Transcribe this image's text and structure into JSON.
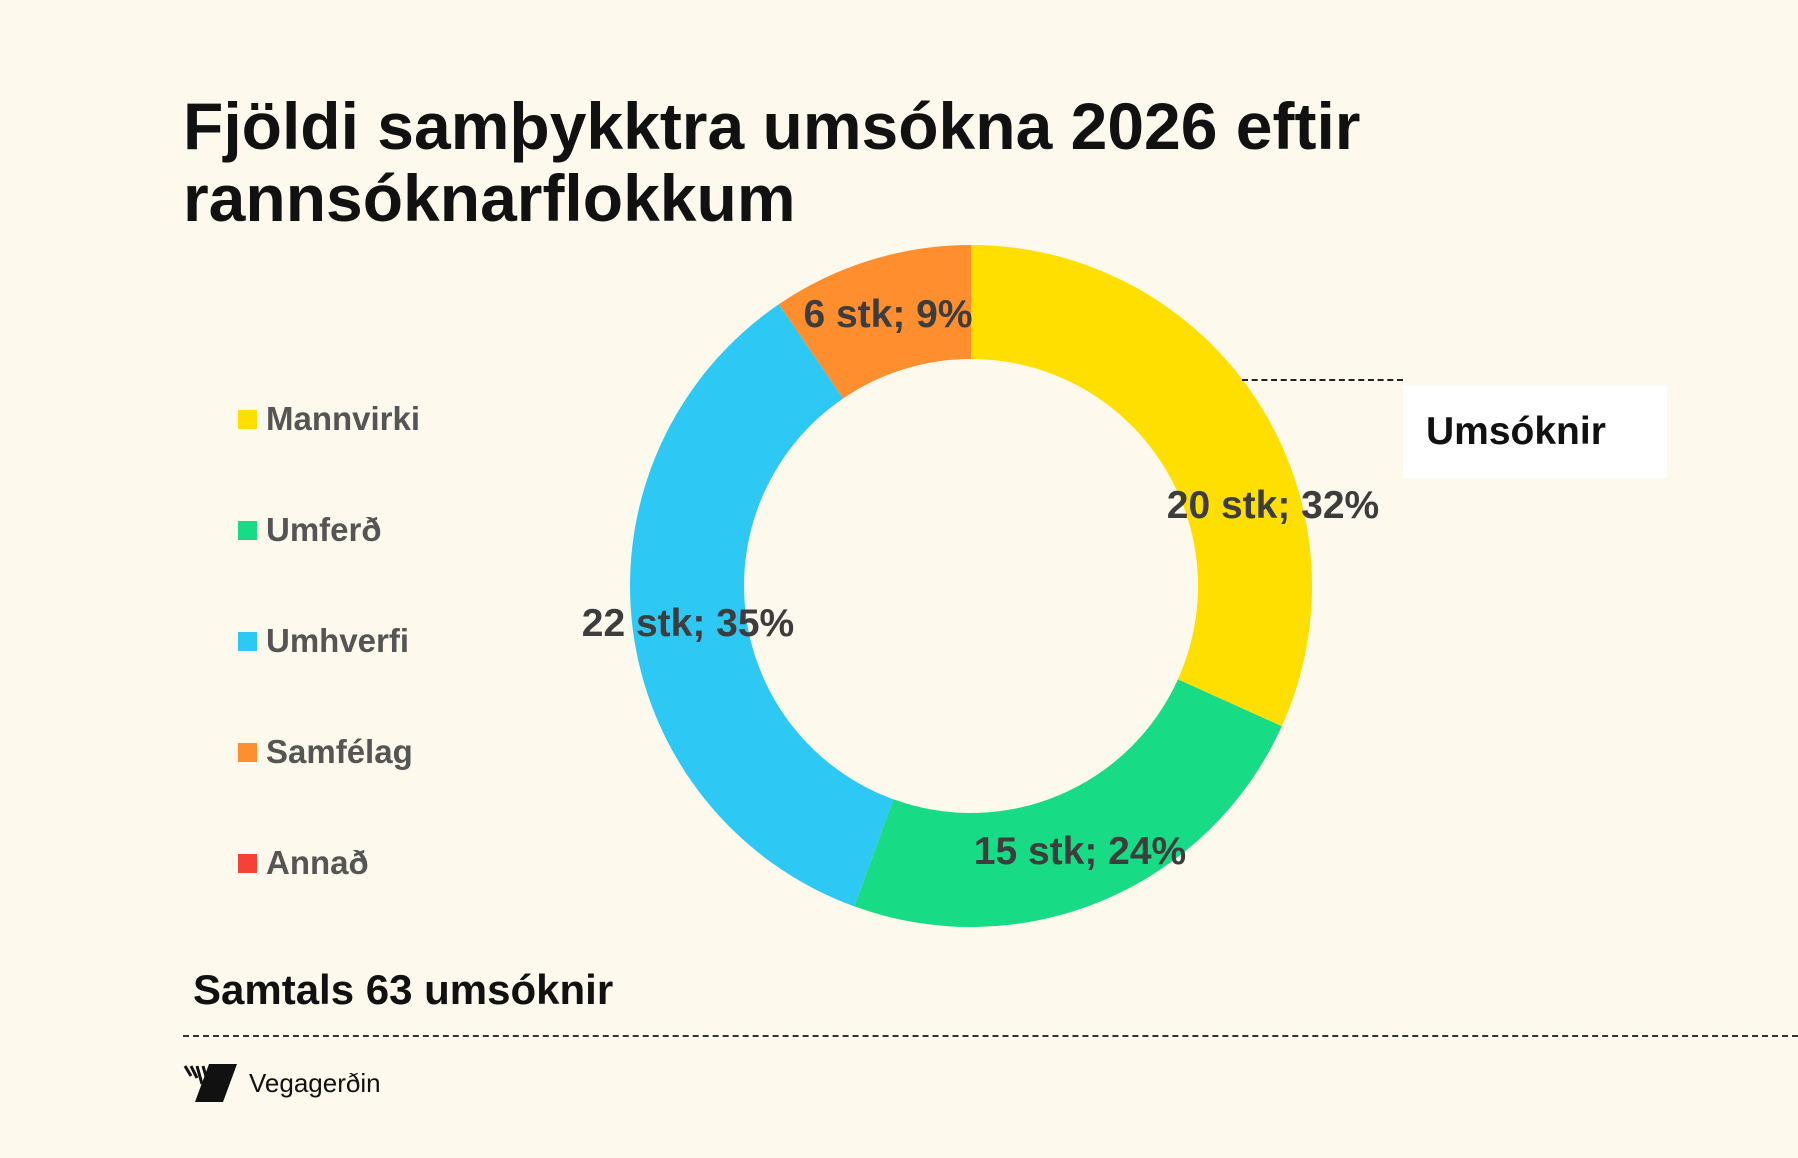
{
  "chart_data": {
    "type": "pie",
    "donut": true,
    "title": "Fjöldi samþykktra umsókna 2026 eftir rannsóknarflokkum",
    "series_name": "Umsóknir",
    "categories": [
      "Mannvirki",
      "Umferð",
      "Umhverfi",
      "Samfélag",
      "Annað"
    ],
    "values": [
      20,
      15,
      22,
      6,
      0
    ],
    "data_labels": [
      "20 stk; 32%",
      "15 stk; 24%",
      "22 stk; 35%",
      "6 stk; 9%",
      ""
    ],
    "colors": [
      "#ffdf00",
      "#17dc85",
      "#2ec8f5",
      "#ff8e2f",
      "#f44336"
    ],
    "legend_position": "left"
  },
  "footer": {
    "total": "Samtals 63 umsóknir",
    "logo_text": "Vegagerðin"
  }
}
